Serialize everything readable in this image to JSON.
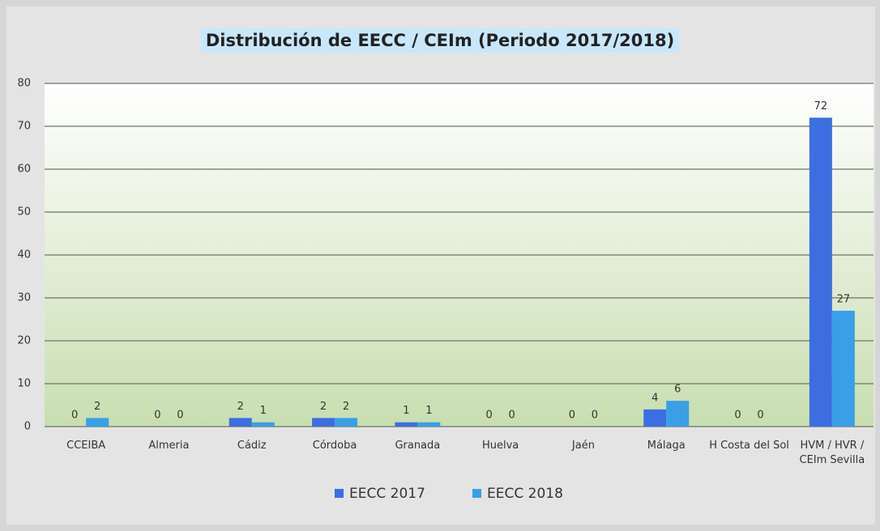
{
  "chart_data": {
    "type": "bar",
    "title": "Distribución de EECC / CEIm (Periodo 2017/2018)",
    "categories": [
      "CCEIBA",
      "Almeria",
      "Cádiz",
      "Córdoba",
      "Granada",
      "Huelva",
      "Jaén",
      "Málaga",
      "H Costa del Sol",
      "HVM / HVR / CEIm Sevilla"
    ],
    "series": [
      {
        "name": "EECC 2017",
        "color": "#3d6ee0",
        "values": [
          0,
          0,
          2,
          2,
          1,
          0,
          0,
          4,
          0,
          72
        ]
      },
      {
        "name": "EECC 2018",
        "color": "#3a9fe6",
        "values": [
          2,
          0,
          1,
          2,
          1,
          0,
          0,
          6,
          0,
          27
        ]
      }
    ],
    "ylim": [
      0,
      80
    ],
    "yticks": [
      0,
      10,
      20,
      30,
      40,
      50,
      60,
      70,
      80
    ],
    "grid": true,
    "legend": "bottom"
  }
}
